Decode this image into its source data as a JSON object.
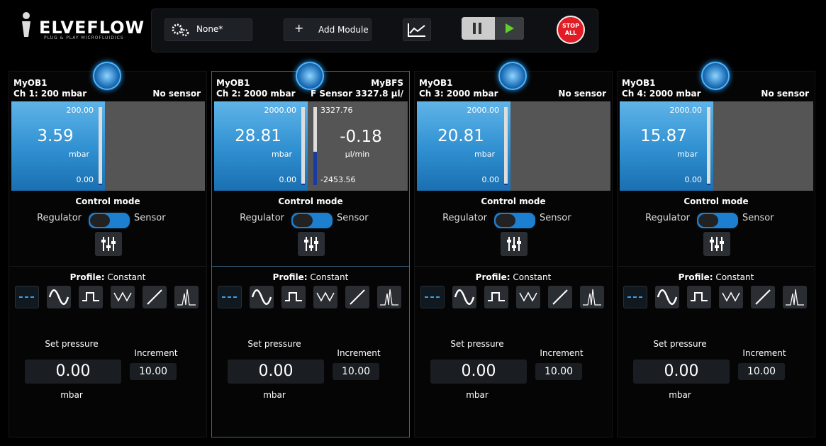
{
  "header": {
    "logo": "ELVEFLOW",
    "tagline": "PLUG & PLAY MICROFLUIDICS",
    "config": "None*",
    "add_module": "Add Module",
    "stop_top": "STOP",
    "stop_bottom": "ALL"
  },
  "channels": [
    {
      "instrument": "MyOB1",
      "channel": "Ch 1: 200 mbar",
      "sensor": "No sensor",
      "max": "200.00",
      "value": "3.59",
      "unit": "mbar",
      "min": "0.00",
      "control_mode": "Control mode",
      "regulator": "Regulator",
      "sensor_label": "Sensor",
      "profile_label": "Profile:",
      "profile": "Constant",
      "set_pressure": "Set pressure",
      "set_value": "0.00",
      "set_unit": "mbar",
      "increment_label": "Increment",
      "increment": "10.00"
    },
    {
      "instrument": "MyOB1",
      "channel": "Ch 2: 2000 mbar",
      "sensor_name": "MyBFS",
      "sensor": "F Sensor 3327.8 µl/",
      "max": "2000.00",
      "value": "28.81",
      "unit": "mbar",
      "min": "0.00",
      "sensor_max": "3327.76",
      "sensor_value": "-0.18",
      "sensor_unit": "µl/min",
      "sensor_min": "-2453.56",
      "control_mode": "Control mode",
      "regulator": "Regulator",
      "sensor_label": "Sensor",
      "profile_label": "Profile:",
      "profile": "Constant",
      "set_pressure": "Set pressure",
      "set_value": "0.00",
      "set_unit": "mbar",
      "increment_label": "Increment",
      "increment": "10.00"
    },
    {
      "instrument": "MyOB1",
      "channel": "Ch 3: 2000 mbar",
      "sensor": "No sensor",
      "max": "2000.00",
      "value": "20.81",
      "unit": "mbar",
      "min": "0.00",
      "control_mode": "Control mode",
      "regulator": "Regulator",
      "sensor_label": "Sensor",
      "profile_label": "Profile:",
      "profile": "Constant",
      "set_pressure": "Set pressure",
      "set_value": "0.00",
      "set_unit": "mbar",
      "increment_label": "Increment",
      "increment": "10.00"
    },
    {
      "instrument": "MyOB1",
      "channel": "Ch 4: 2000 mbar",
      "sensor": "No sensor",
      "max": "2000.00",
      "value": "15.87",
      "unit": "mbar",
      "min": "0.00",
      "control_mode": "Control mode",
      "regulator": "Regulator",
      "sensor_label": "Sensor",
      "profile_label": "Profile:",
      "profile": "Constant",
      "set_pressure": "Set pressure",
      "set_value": "0.00",
      "set_unit": "mbar",
      "increment_label": "Increment",
      "increment": "10.00"
    }
  ]
}
